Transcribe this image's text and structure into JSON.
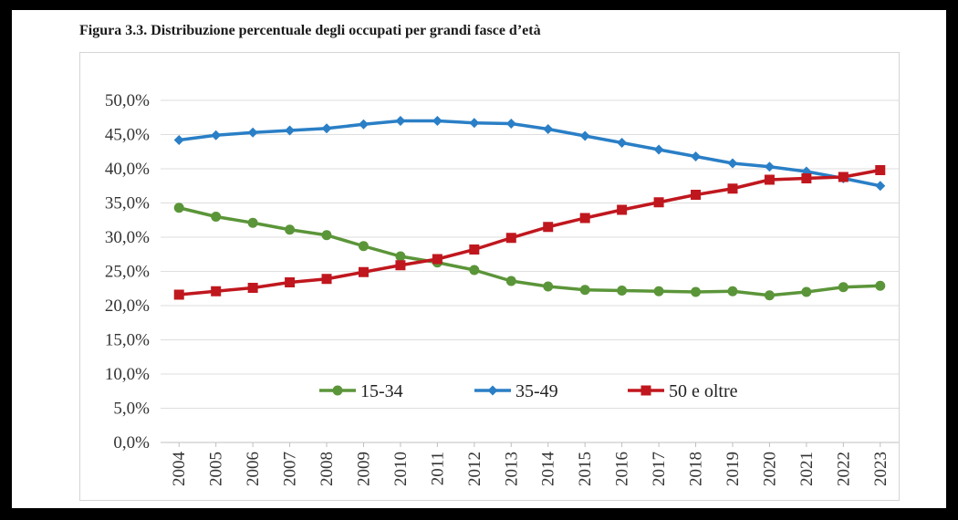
{
  "figure_caption": "Figura 3.3. Distribuzione percentuale degli occupati per grandi fasce d’età",
  "chart_data": {
    "type": "line",
    "title": "",
    "xlabel": "",
    "ylabel": "",
    "x": [
      "2004",
      "2005",
      "2006",
      "2007",
      "2008",
      "2009",
      "2010",
      "2011",
      "2012",
      "2013",
      "2014",
      "2015",
      "2016",
      "2017",
      "2018",
      "2019",
      "2020",
      "2021",
      "2022",
      "2023"
    ],
    "ylim": [
      0,
      50
    ],
    "y_ticks": [
      "0,0%",
      "5,0%",
      "10,0%",
      "15,0%",
      "20,0%",
      "25,0%",
      "30,0%",
      "35,0%",
      "40,0%",
      "45,0%",
      "50,0%"
    ],
    "grid": "horizontal",
    "legend_position": "inside-bottom",
    "series": [
      {
        "name": "15-34",
        "color": "#5b9539",
        "marker": "circle",
        "values": [
          34.3,
          33.0,
          32.1,
          31.1,
          30.3,
          28.7,
          27.2,
          26.3,
          25.2,
          23.6,
          22.8,
          22.3,
          22.2,
          22.1,
          22.0,
          22.1,
          21.5,
          22.0,
          22.7,
          22.9
        ]
      },
      {
        "name": "35-49",
        "color": "#2a7fc6",
        "marker": "diamond",
        "values": [
          44.2,
          44.9,
          45.3,
          45.6,
          45.9,
          46.5,
          47.0,
          47.0,
          46.7,
          46.6,
          45.8,
          44.8,
          43.8,
          42.8,
          41.8,
          40.8,
          40.3,
          39.6,
          38.6,
          37.5
        ]
      },
      {
        "name": "50 e oltre",
        "color": "#c0171e",
        "marker": "square",
        "values": [
          21.6,
          22.1,
          22.6,
          23.4,
          23.9,
          24.9,
          25.9,
          26.8,
          28.2,
          29.9,
          31.5,
          32.8,
          34.0,
          35.1,
          36.2,
          37.1,
          38.4,
          38.6,
          38.8,
          39.8
        ]
      }
    ]
  }
}
